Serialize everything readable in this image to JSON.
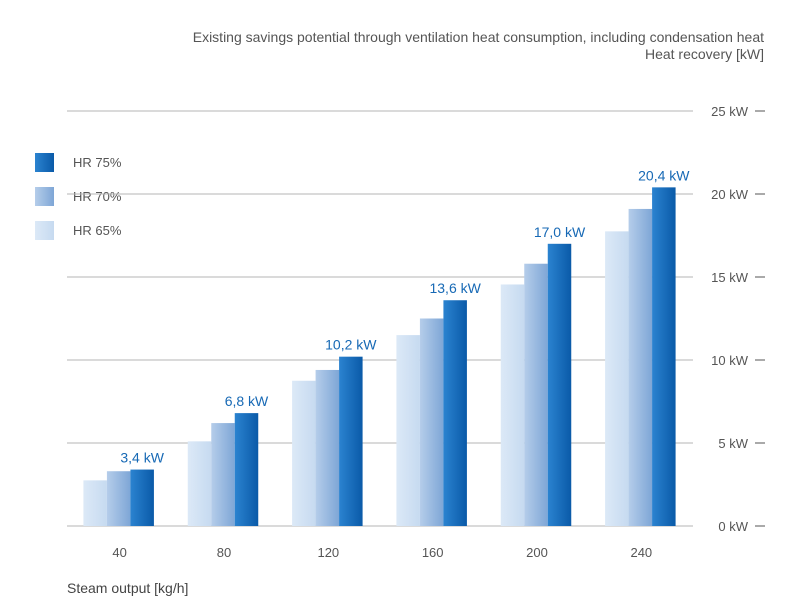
{
  "chart_data": {
    "type": "bar",
    "title": "Existing savings potential through ventilation heat consumption, including condensation heat",
    "subtitle": "Heat recovery [kW]",
    "xlabel": "Steam output [kg/h]",
    "ylabel": "",
    "categories": [
      "40",
      "80",
      "120",
      "160",
      "200",
      "240"
    ],
    "ylim": [
      0,
      25
    ],
    "yticks": [
      0,
      5,
      10,
      15,
      20,
      25
    ],
    "ytick_labels": [
      "0 kW",
      "5 kW",
      "10 kW",
      "15 kW",
      "20 kW",
      "25 kW"
    ],
    "grid": true,
    "legend_position": "left",
    "series": [
      {
        "name": "HR 65%",
        "values": [
          2.75,
          5.1,
          8.75,
          11.5,
          14.55,
          17.75
        ],
        "color_light": "#dce9f7",
        "color_dark": "#c6daf0"
      },
      {
        "name": "HR 70%",
        "values": [
          3.3,
          6.2,
          9.4,
          12.5,
          15.8,
          19.1
        ],
        "color_light": "#b5cdea",
        "color_dark": "#7ea6d6"
      },
      {
        "name": "HR 75%",
        "values": [
          3.4,
          6.8,
          10.2,
          13.6,
          17.0,
          20.4
        ],
        "color_light": "#2b83d0",
        "color_dark": "#0a5aa8"
      }
    ],
    "data_labels": [
      "3,4 kW",
      "6,8 kW",
      "10,2 kW",
      "13,6 kW",
      "17,0 kW",
      "20,4 kW"
    ],
    "legend_order": [
      "HR 75%",
      "HR 70%",
      "HR 65%"
    ]
  }
}
